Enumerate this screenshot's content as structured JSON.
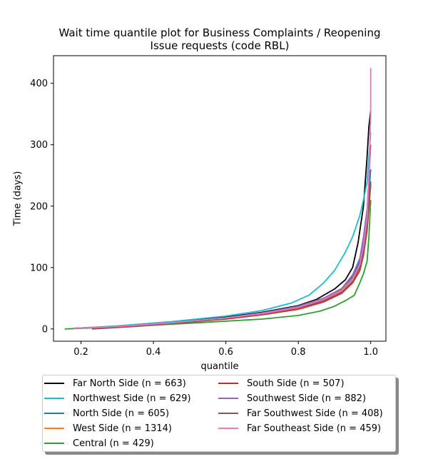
{
  "chart_data": {
    "type": "line",
    "title_line1": "Wait time quantile plot for Business Complaints / Reopening",
    "title_line2": "Issue  requests (code RBL)",
    "xlabel": "quantile",
    "ylabel": "Time (days)",
    "xlim": [
      0.124,
      1.042
    ],
    "ylim": [
      -20,
      445
    ],
    "x_ticks": [
      0.2,
      0.4,
      0.6,
      0.8,
      1.0
    ],
    "x_tick_labels": [
      "0.2",
      "0.4",
      "0.6",
      "0.8",
      "1.0"
    ],
    "y_ticks": [
      0,
      100,
      200,
      300,
      400
    ],
    "y_tick_labels": [
      "0",
      "100",
      "200",
      "300",
      "400"
    ],
    "grid": false,
    "legend_placement": "below",
    "legend_columns": 2,
    "series": [
      {
        "name": "Far North Side (n = 663)",
        "color": "#000000",
        "x": [
          0.18,
          0.3,
          0.45,
          0.6,
          0.7,
          0.8,
          0.85,
          0.9,
          0.93,
          0.95,
          0.965,
          0.98,
          0.99,
          0.995,
          1.0
        ],
        "y": [
          1,
          4,
          10,
          19,
          27,
          38,
          48,
          65,
          80,
          100,
          140,
          200,
          280,
          330,
          355
        ]
      },
      {
        "name": "Northwest Side (n = 629)",
        "color": "#17becf",
        "x": [
          0.18,
          0.3,
          0.45,
          0.6,
          0.7,
          0.78,
          0.83,
          0.87,
          0.9,
          0.93,
          0.95,
          0.97,
          0.98,
          0.99,
          0.995,
          1.0
        ],
        "y": [
          1,
          5,
          12,
          21,
          30,
          42,
          55,
          75,
          95,
          125,
          150,
          185,
          210,
          240,
          280,
          320
        ]
      },
      {
        "name": "North Side (n = 605)",
        "color": "#1f77b4",
        "x": [
          0.18,
          0.3,
          0.45,
          0.6,
          0.7,
          0.8,
          0.87,
          0.92,
          0.95,
          0.97,
          0.98,
          0.99,
          1.0
        ],
        "y": [
          1,
          4,
          10,
          18,
          26,
          36,
          50,
          65,
          85,
          110,
          140,
          180,
          260
        ]
      },
      {
        "name": "West Side (n = 1314)",
        "color": "#ff7f0e",
        "x": [
          0.18,
          0.3,
          0.45,
          0.6,
          0.7,
          0.8,
          0.87,
          0.92,
          0.95,
          0.97,
          0.98,
          0.99,
          1.0
        ],
        "y": [
          1,
          4,
          9,
          17,
          25,
          35,
          48,
          63,
          82,
          105,
          130,
          170,
          240
        ]
      },
      {
        "name": "Central (n = 429)",
        "color": "#2ca02c",
        "x": [
          0.155,
          0.25,
          0.4,
          0.55,
          0.7,
          0.8,
          0.86,
          0.9,
          0.93,
          0.955,
          0.96,
          0.97,
          0.98,
          0.99,
          0.995,
          1.0
        ],
        "y": [
          0,
          2,
          6,
          11,
          16,
          22,
          29,
          37,
          46,
          55,
          62,
          75,
          90,
          110,
          150,
          210
        ]
      },
      {
        "name": "South Side (n = 507)",
        "color": "#d62728",
        "x": [
          0.18,
          0.3,
          0.45,
          0.6,
          0.7,
          0.8,
          0.87,
          0.92,
          0.95,
          0.97,
          0.98,
          0.99,
          1.0
        ],
        "y": [
          1,
          4,
          9,
          16,
          23,
          32,
          44,
          58,
          75,
          95,
          120,
          160,
          235
        ]
      },
      {
        "name": "Southwest Side (n = 882)",
        "color": "#9467bd",
        "x": [
          0.18,
          0.3,
          0.45,
          0.6,
          0.7,
          0.8,
          0.87,
          0.92,
          0.95,
          0.97,
          0.98,
          0.99,
          1.0
        ],
        "y": [
          1,
          4,
          10,
          18,
          26,
          37,
          50,
          66,
          88,
          115,
          150,
          195,
          300
        ]
      },
      {
        "name": "Far Southwest Side (n = 408)",
        "color": "#8c564b",
        "x": [
          0.23,
          0.35,
          0.5,
          0.6,
          0.7,
          0.8,
          0.87,
          0.92,
          0.95,
          0.97,
          0.98,
          0.99,
          1.0
        ],
        "y": [
          0,
          4,
          11,
          17,
          24,
          34,
          46,
          60,
          78,
          100,
          125,
          170,
          240
        ]
      },
      {
        "name": "Far Southeast Side (n = 459)",
        "color": "#e377c2",
        "x": [
          0.18,
          0.3,
          0.45,
          0.6,
          0.7,
          0.8,
          0.87,
          0.92,
          0.95,
          0.97,
          0.98,
          0.99,
          0.995,
          1.0,
          1.0
        ],
        "y": [
          1,
          4,
          10,
          18,
          25,
          35,
          48,
          62,
          80,
          105,
          135,
          180,
          250,
          350,
          425
        ]
      }
    ]
  }
}
